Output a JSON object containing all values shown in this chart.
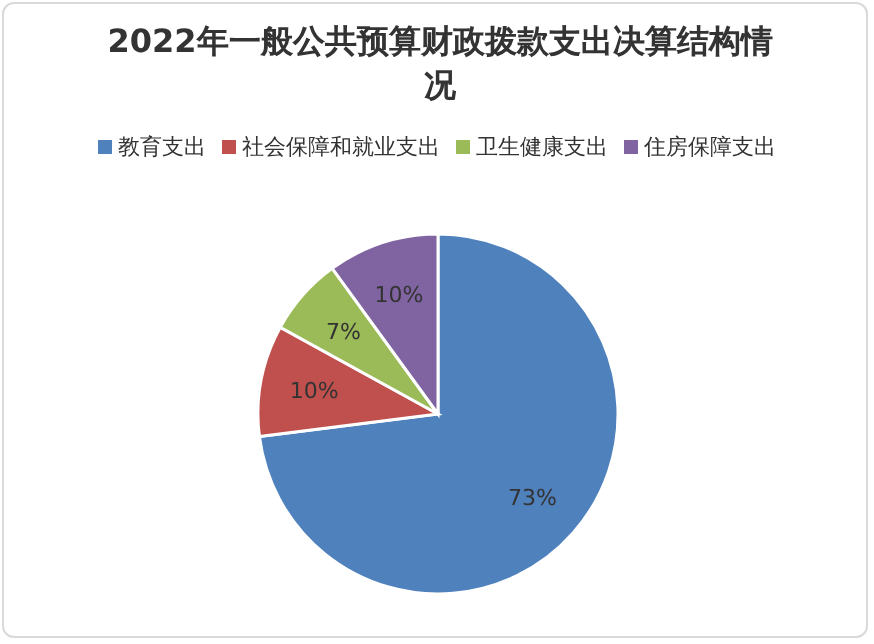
{
  "chart_data": {
    "type": "pie",
    "title": "2022年一般公共预算财政拨款支出决算结构情况",
    "categories": [
      "教育支出",
      "社会保障和就业支出",
      "卫生健康支出",
      "住房保障支出"
    ],
    "values": [
      73,
      10,
      7,
      10
    ],
    "colors": [
      "#4f81bd",
      "#c0504d",
      "#9bbb59",
      "#8064a2"
    ],
    "value_labels": [
      "73%",
      "10%",
      "7%",
      "10%"
    ],
    "legend": "top"
  }
}
